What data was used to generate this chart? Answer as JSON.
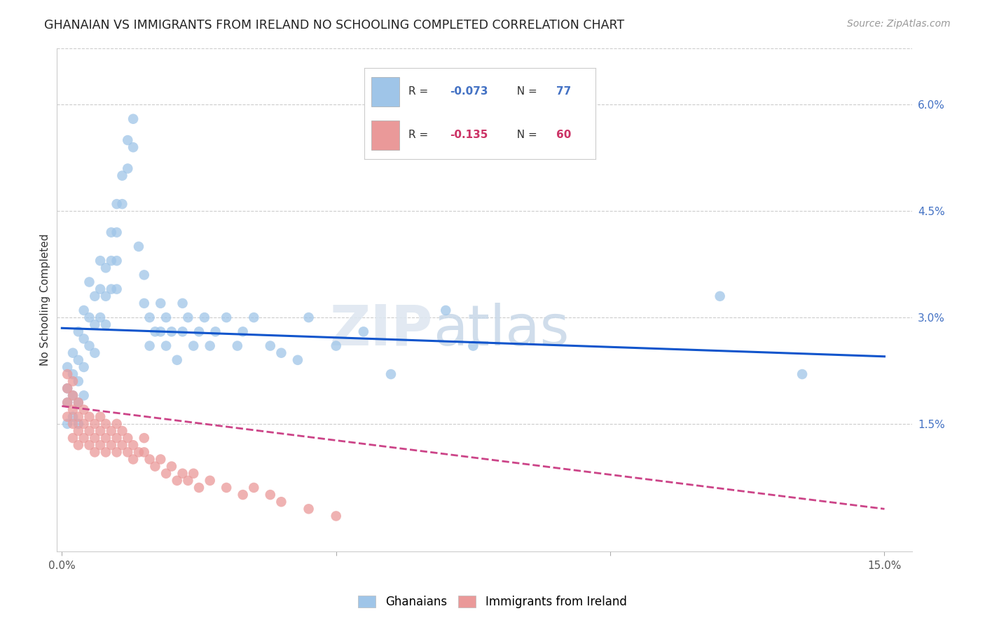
{
  "title": "GHANAIAN VS IMMIGRANTS FROM IRELAND NO SCHOOLING COMPLETED CORRELATION CHART",
  "source": "Source: ZipAtlas.com",
  "ylabel": "No Schooling Completed",
  "xlabel_ticks": [
    "0.0%",
    "",
    "",
    "15.0%"
  ],
  "xlabel_vals": [
    0.0,
    0.05,
    0.1,
    0.15
  ],
  "ylabel_ticks": [
    "1.5%",
    "3.0%",
    "4.5%",
    "6.0%"
  ],
  "ylabel_vals": [
    0.015,
    0.03,
    0.045,
    0.06
  ],
  "xlim": [
    -0.001,
    0.155
  ],
  "ylim": [
    -0.003,
    0.068
  ],
  "legend_sublabel1": "Ghanaians",
  "legend_sublabel2": "Immigrants from Ireland",
  "blue_color": "#9fc5e8",
  "pink_color": "#ea9999",
  "line_blue": "#1155cc",
  "line_pink": "#cc4488",
  "watermark_zip": "ZIP",
  "watermark_atlas": "atlas",
  "blue_x": [
    0.001,
    0.001,
    0.001,
    0.001,
    0.002,
    0.002,
    0.002,
    0.002,
    0.003,
    0.003,
    0.003,
    0.003,
    0.003,
    0.004,
    0.004,
    0.004,
    0.004,
    0.005,
    0.005,
    0.005,
    0.006,
    0.006,
    0.006,
    0.007,
    0.007,
    0.007,
    0.008,
    0.008,
    0.008,
    0.009,
    0.009,
    0.009,
    0.01,
    0.01,
    0.01,
    0.01,
    0.011,
    0.011,
    0.012,
    0.012,
    0.013,
    0.013,
    0.014,
    0.015,
    0.015,
    0.016,
    0.016,
    0.017,
    0.018,
    0.018,
    0.019,
    0.019,
    0.02,
    0.021,
    0.022,
    0.022,
    0.023,
    0.024,
    0.025,
    0.026,
    0.027,
    0.028,
    0.03,
    0.032,
    0.033,
    0.035,
    0.038,
    0.04,
    0.043,
    0.045,
    0.05,
    0.055,
    0.06,
    0.07,
    0.075,
    0.12,
    0.135
  ],
  "blue_y": [
    0.02,
    0.018,
    0.015,
    0.023,
    0.022,
    0.019,
    0.025,
    0.016,
    0.028,
    0.024,
    0.021,
    0.018,
    0.015,
    0.031,
    0.027,
    0.023,
    0.019,
    0.035,
    0.03,
    0.026,
    0.033,
    0.029,
    0.025,
    0.038,
    0.034,
    0.03,
    0.037,
    0.033,
    0.029,
    0.042,
    0.038,
    0.034,
    0.046,
    0.042,
    0.038,
    0.034,
    0.05,
    0.046,
    0.055,
    0.051,
    0.058,
    0.054,
    0.04,
    0.036,
    0.032,
    0.03,
    0.026,
    0.028,
    0.032,
    0.028,
    0.03,
    0.026,
    0.028,
    0.024,
    0.032,
    0.028,
    0.03,
    0.026,
    0.028,
    0.03,
    0.026,
    0.028,
    0.03,
    0.026,
    0.028,
    0.03,
    0.026,
    0.025,
    0.024,
    0.03,
    0.026,
    0.028,
    0.022,
    0.031,
    0.026,
    0.033,
    0.022
  ],
  "pink_x": [
    0.001,
    0.001,
    0.001,
    0.001,
    0.002,
    0.002,
    0.002,
    0.002,
    0.002,
    0.003,
    0.003,
    0.003,
    0.003,
    0.004,
    0.004,
    0.004,
    0.005,
    0.005,
    0.005,
    0.006,
    0.006,
    0.006,
    0.007,
    0.007,
    0.007,
    0.008,
    0.008,
    0.008,
    0.009,
    0.009,
    0.01,
    0.01,
    0.01,
    0.011,
    0.011,
    0.012,
    0.012,
    0.013,
    0.013,
    0.014,
    0.015,
    0.015,
    0.016,
    0.017,
    0.018,
    0.019,
    0.02,
    0.021,
    0.022,
    0.023,
    0.024,
    0.025,
    0.027,
    0.03,
    0.033,
    0.035,
    0.038,
    0.04,
    0.045,
    0.05
  ],
  "pink_y": [
    0.02,
    0.018,
    0.016,
    0.022,
    0.019,
    0.017,
    0.021,
    0.015,
    0.013,
    0.018,
    0.016,
    0.014,
    0.012,
    0.017,
    0.015,
    0.013,
    0.016,
    0.014,
    0.012,
    0.015,
    0.013,
    0.011,
    0.016,
    0.014,
    0.012,
    0.015,
    0.013,
    0.011,
    0.014,
    0.012,
    0.015,
    0.013,
    0.011,
    0.014,
    0.012,
    0.013,
    0.011,
    0.012,
    0.01,
    0.011,
    0.013,
    0.011,
    0.01,
    0.009,
    0.01,
    0.008,
    0.009,
    0.007,
    0.008,
    0.007,
    0.008,
    0.006,
    0.007,
    0.006,
    0.005,
    0.006,
    0.005,
    0.004,
    0.003,
    0.002
  ],
  "blue_line_start_y": 0.0285,
  "blue_line_end_y": 0.0245,
  "pink_line_start_y": 0.0175,
  "pink_line_end_y": 0.003
}
